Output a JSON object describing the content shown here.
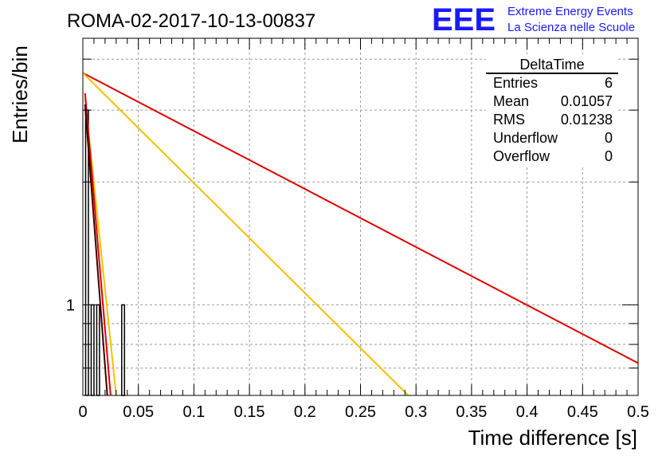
{
  "header": {
    "run_title": "ROMA-02-2017-10-13-00837",
    "logo_text": "EEE",
    "logo_line1": "Extreme Energy Events",
    "logo_line2": "La Scienza nelle Scuole"
  },
  "colors": {
    "logo": "#1a1aff",
    "fit_red": "#e00000",
    "fit_yellow": "#f5c000",
    "fit_dark": "#3a0000",
    "histogram": "#000000"
  },
  "stats": {
    "name": "DeltaTime",
    "rows": [
      {
        "label": "Entries",
        "value": "6"
      },
      {
        "label": "Mean",
        "value": "0.01057"
      },
      {
        "label": "RMS",
        "value": "0.01238"
      },
      {
        "label": "Underflow",
        "value": "0"
      },
      {
        "label": "Overflow",
        "value": "0"
      }
    ]
  },
  "chart_data": {
    "type": "bar",
    "title": "ROMA-02-2017-10-13-00837",
    "xlabel": "Time difference [s]",
    "ylabel": "Entries/bin",
    "xlim": [
      0,
      0.5
    ],
    "ylim": [
      0.6,
      4.5
    ],
    "y_log_scale": true,
    "grid": true,
    "xticks": [
      0,
      0.05,
      0.1,
      0.15,
      0.2,
      0.25,
      0.3,
      0.35,
      0.4,
      0.45,
      0.5
    ],
    "xtick_labels": [
      "0",
      "0.05",
      "0.1",
      "0.15",
      "0.2",
      "0.25",
      "0.3",
      "0.35",
      "0.4",
      "0.45",
      "0.5"
    ],
    "ytick_labels": [
      {
        "value": 1,
        "label": "1"
      }
    ],
    "bins": [
      {
        "x0": 0.0025,
        "x1": 0.005,
        "count": 3
      },
      {
        "x0": 0.0075,
        "x1": 0.01,
        "count": 1
      },
      {
        "x0": 0.0125,
        "x1": 0.015,
        "count": 1
      },
      {
        "x0": 0.035,
        "x1": 0.0375,
        "count": 1
      }
    ],
    "fit_curves": [
      {
        "color": "#e00000",
        "points": [
          [
            0,
            3.7
          ],
          [
            0.5,
            0.72
          ]
        ]
      },
      {
        "color": "#f5c000",
        "points": [
          [
            0,
            3.7
          ],
          [
            0.293,
            0.6
          ]
        ]
      },
      {
        "color": "#f5c000",
        "points": [
          [
            0.002,
            3.2
          ],
          [
            0.03,
            0.6
          ]
        ]
      },
      {
        "color": "#e00000",
        "points": [
          [
            0.002,
            3.3
          ],
          [
            0.025,
            0.6
          ]
        ]
      },
      {
        "color": "#3a0000",
        "points": [
          [
            0.002,
            3.1
          ],
          [
            0.022,
            0.6
          ]
        ]
      }
    ]
  }
}
